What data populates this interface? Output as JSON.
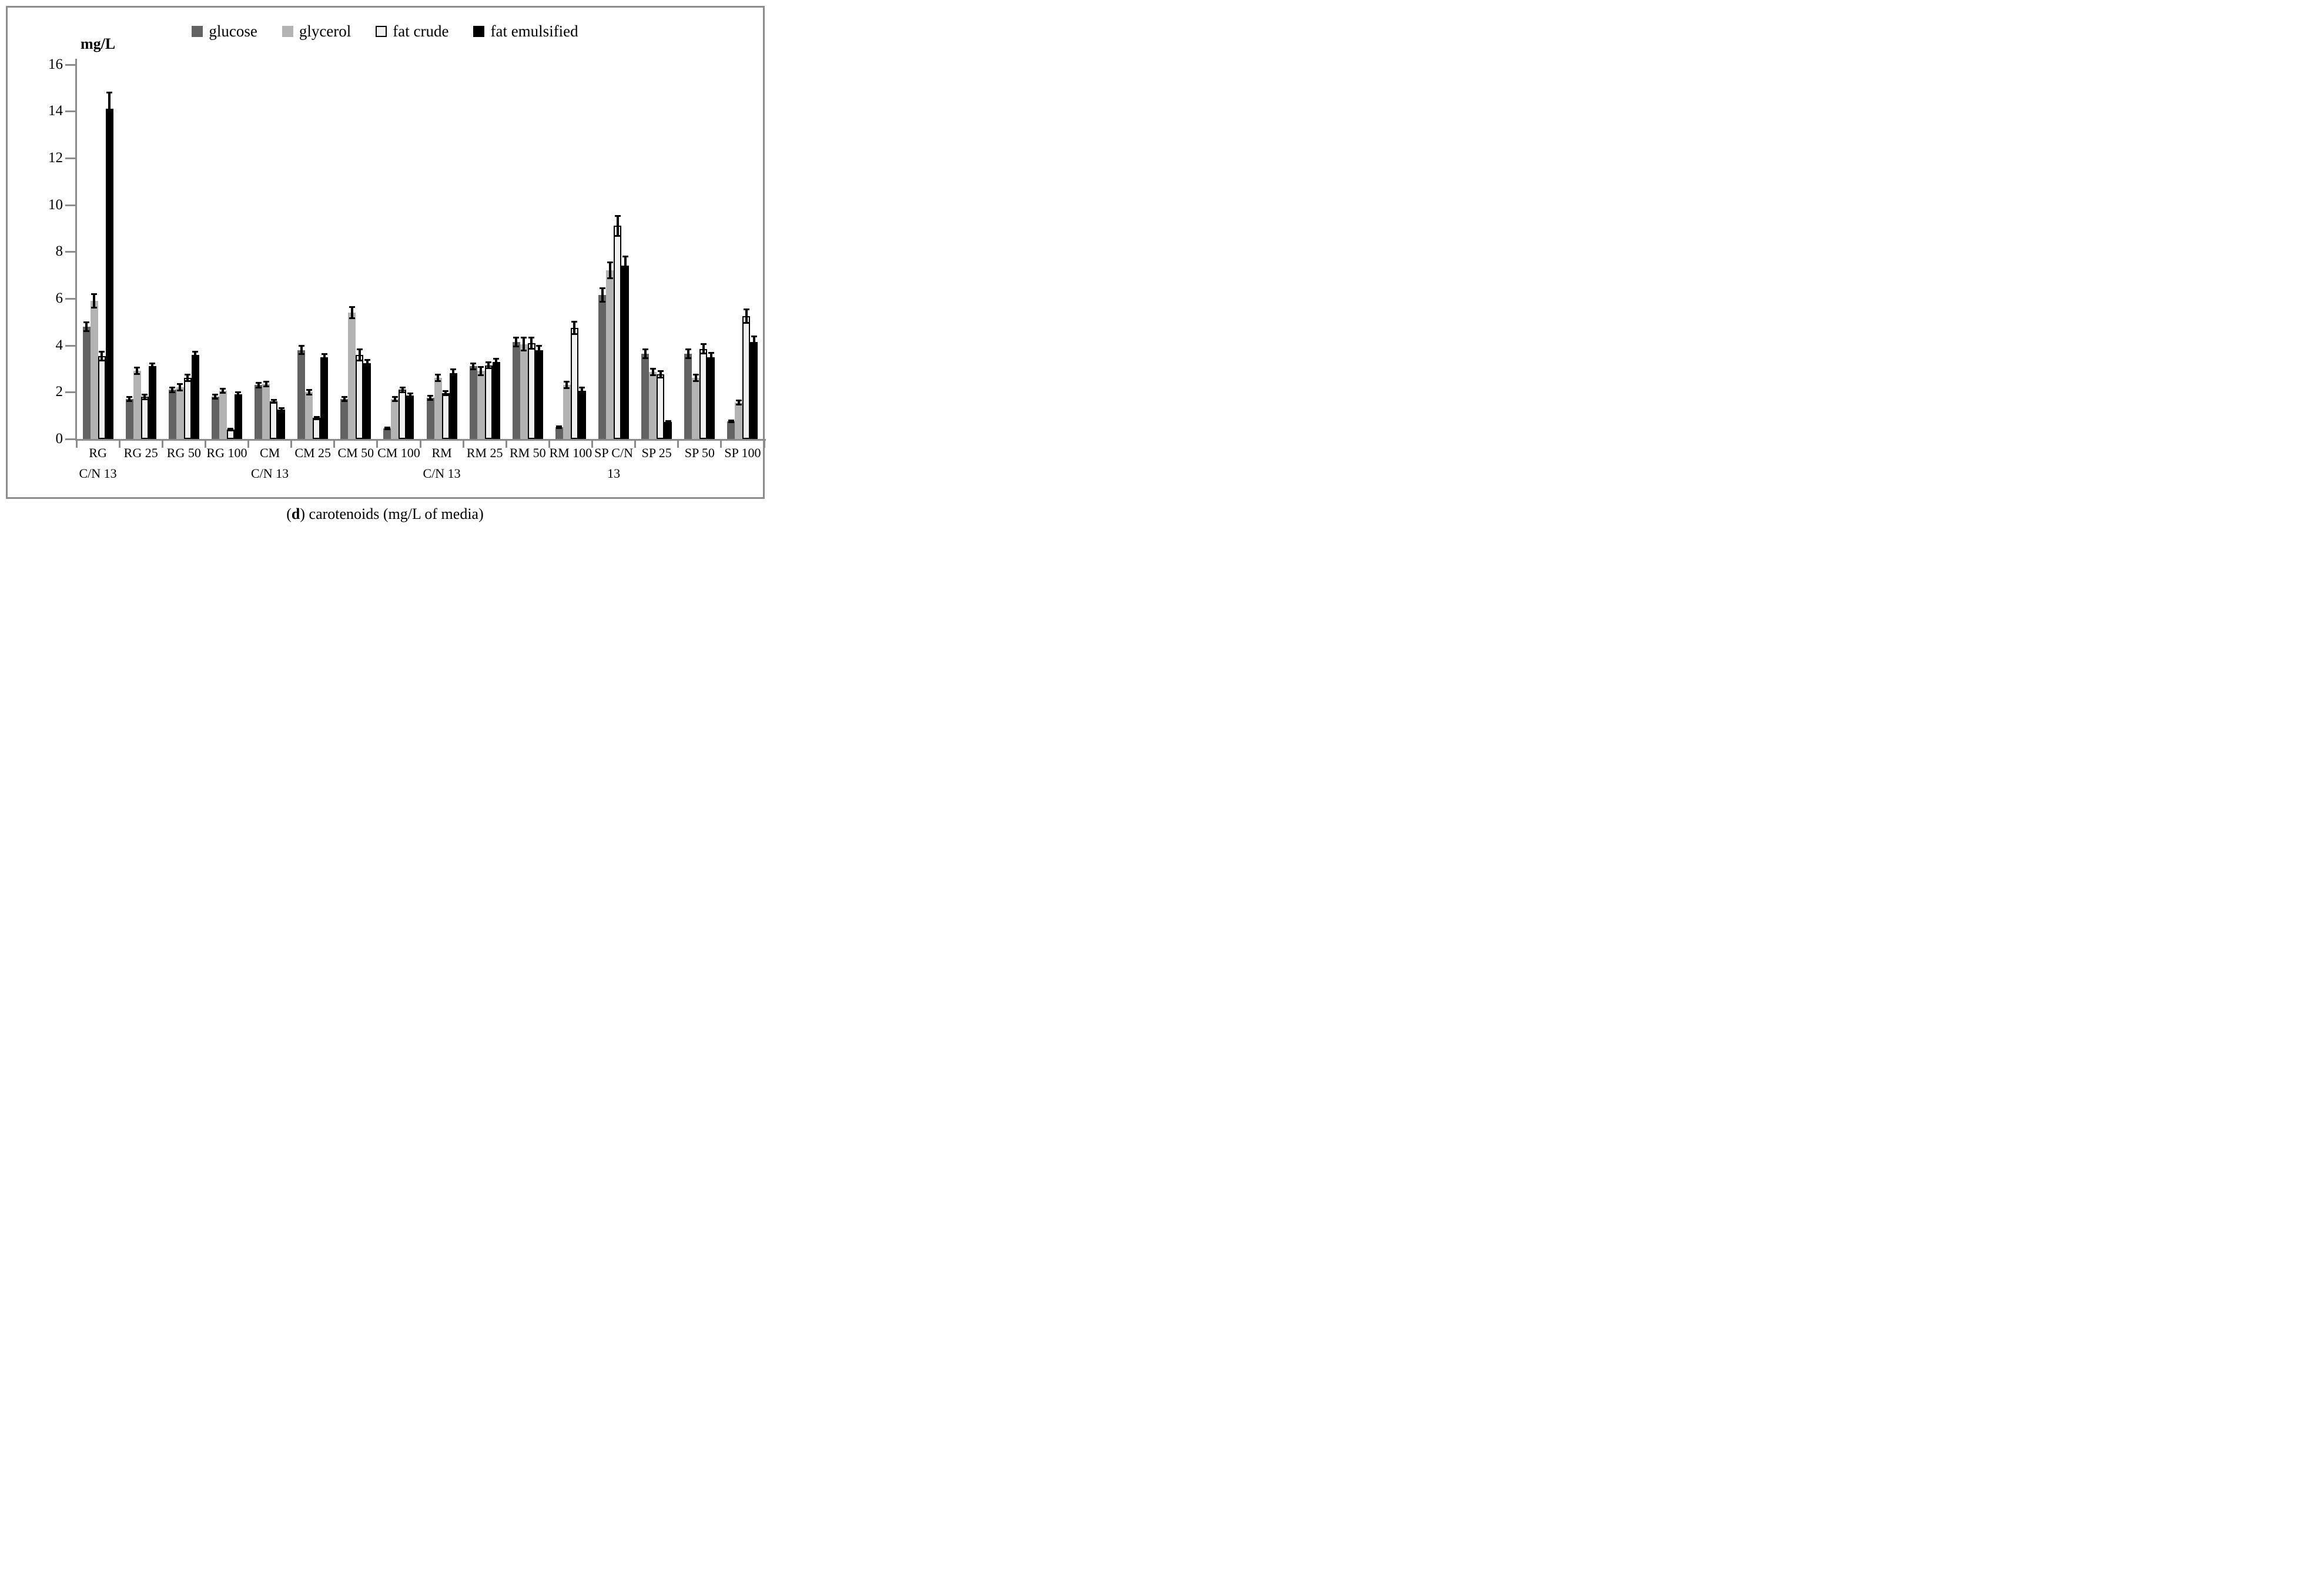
{
  "figure": {
    "y_axis_label": "mg/L",
    "caption": {
      "open": "(",
      "bold": "d",
      "rest": ") carotenoids (mg/L of media)"
    },
    "colors": {
      "axis": "#8c8c8c",
      "border": "#8c8c8c",
      "glucose": "#636363",
      "glycerol": "#b3b3b3",
      "fat_crude": "#f0f0f0",
      "fat_crude_border": "#000000",
      "fat_emulsified": "#000000"
    }
  },
  "chart_data": {
    "type": "bar",
    "title": "(d) carotenoids (mg/L of media)",
    "ylabel": "mg/L",
    "ylim": [
      0,
      16
    ],
    "yticks": [
      0,
      2,
      4,
      6,
      8,
      10,
      12,
      14,
      16
    ],
    "grid": false,
    "legend_position": "top-center",
    "error_bars": true,
    "categories": [
      {
        "label": "RG",
        "sub": "C/N 13"
      },
      {
        "label": "RG 25",
        "sub": ""
      },
      {
        "label": "RG 50",
        "sub": ""
      },
      {
        "label": "RG 100",
        "sub": ""
      },
      {
        "label": "CM",
        "sub": "C/N 13"
      },
      {
        "label": "CM 25",
        "sub": ""
      },
      {
        "label": "CM 50",
        "sub": ""
      },
      {
        "label": "CM 100",
        "sub": ""
      },
      {
        "label": "RM",
        "sub": "C/N 13"
      },
      {
        "label": "RM 25",
        "sub": ""
      },
      {
        "label": "RM 50",
        "sub": ""
      },
      {
        "label": "RM 100",
        "sub": ""
      },
      {
        "label": "SP C/N",
        "sub": "13"
      },
      {
        "label": "SP 25",
        "sub": ""
      },
      {
        "label": "SP 50",
        "sub": ""
      },
      {
        "label": "SP 100",
        "sub": ""
      }
    ],
    "series": [
      {
        "name": "glucose",
        "color": "#636363",
        "values": [
          4.8,
          1.7,
          2.1,
          1.8,
          2.3,
          3.8,
          1.7,
          0.45,
          1.75,
          3.1,
          4.15,
          0.5,
          6.15,
          3.65,
          3.65,
          0.75
        ],
        "errors": [
          0.2,
          0.1,
          0.12,
          0.1,
          0.12,
          0.18,
          0.1,
          0.05,
          0.1,
          0.15,
          0.2,
          0.05,
          0.3,
          0.2,
          0.2,
          0.05
        ]
      },
      {
        "name": "glycerol",
        "color": "#b3b3b3",
        "values": [
          5.9,
          2.9,
          2.2,
          2.05,
          2.35,
          2.0,
          5.4,
          1.7,
          2.6,
          2.9,
          4.05,
          2.3,
          7.2,
          2.85,
          2.6,
          1.55
        ],
        "errors": [
          0.3,
          0.15,
          0.15,
          0.1,
          0.12,
          0.12,
          0.25,
          0.1,
          0.15,
          0.18,
          0.28,
          0.15,
          0.35,
          0.15,
          0.15,
          0.1
        ]
      },
      {
        "name": "fat crude",
        "color": "#f0f0f0",
        "border": "#000000",
        "values": [
          3.55,
          1.8,
          2.6,
          0.4,
          1.6,
          0.9,
          3.6,
          2.1,
          1.95,
          3.15,
          4.1,
          4.75,
          9.1,
          2.75,
          3.85,
          5.25
        ],
        "errors": [
          0.2,
          0.12,
          0.15,
          0.05,
          0.08,
          0.06,
          0.25,
          0.12,
          0.1,
          0.15,
          0.25,
          0.28,
          0.45,
          0.15,
          0.22,
          0.3
        ]
      },
      {
        "name": "fat emulsified",
        "color": "#000000",
        "values": [
          14.1,
          3.1,
          3.6,
          1.9,
          1.25,
          3.5,
          3.25,
          1.85,
          2.8,
          3.3,
          3.8,
          2.05,
          7.4,
          0.72,
          3.5,
          4.15
        ],
        "errors": [
          0.7,
          0.15,
          0.15,
          0.12,
          0.08,
          0.15,
          0.15,
          0.1,
          0.18,
          0.15,
          0.2,
          0.15,
          0.4,
          0.05,
          0.2,
          0.25
        ]
      }
    ]
  }
}
